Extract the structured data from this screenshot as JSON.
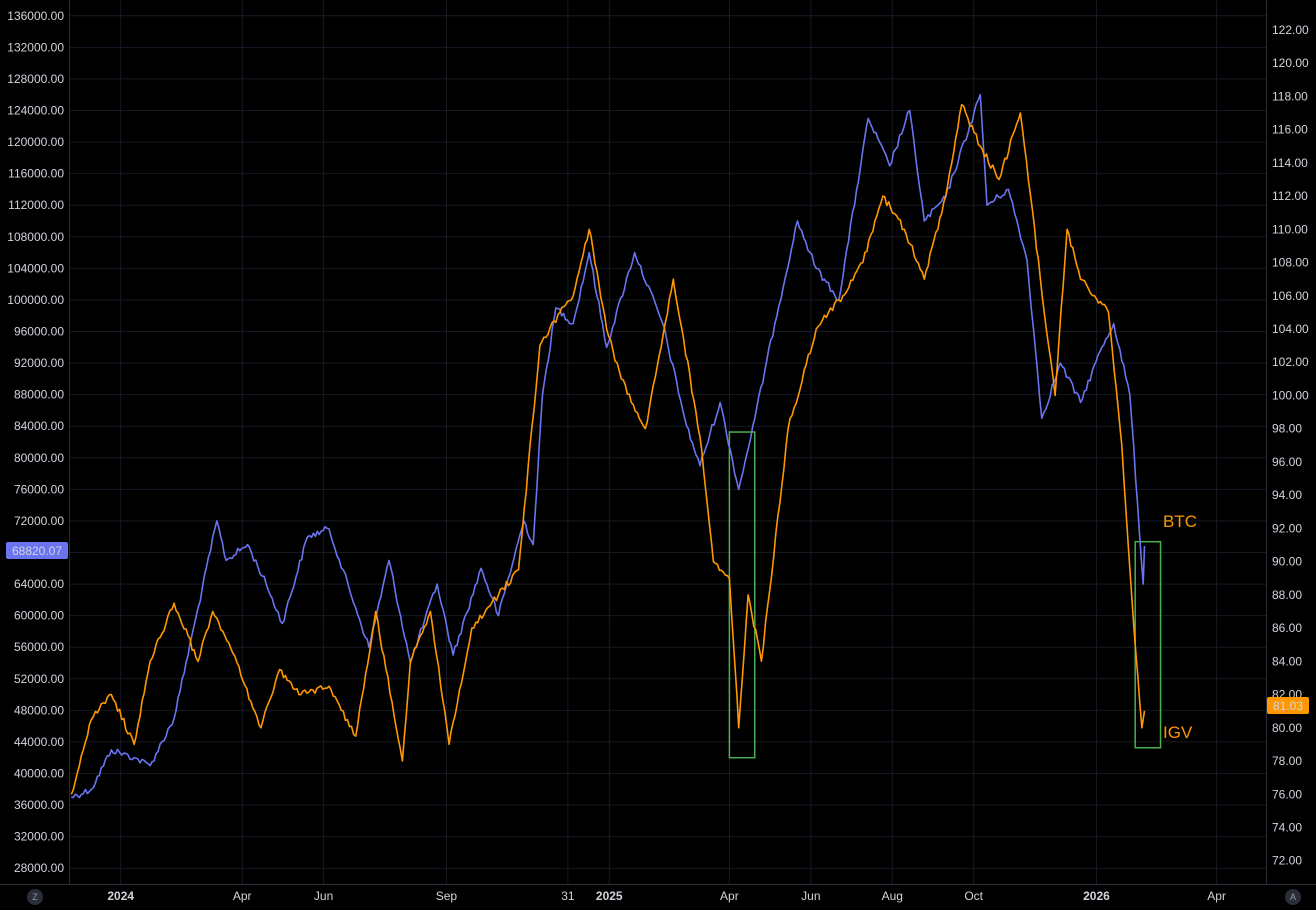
{
  "chart_data": {
    "type": "line",
    "title": "",
    "x_ticks": [
      "2024",
      "Apr",
      "Jun",
      "Sep",
      "31",
      "2025",
      "Apr",
      "Jun",
      "Aug",
      "Oct",
      "2026",
      "Apr"
    ],
    "x_ticks_bold": [
      "2024",
      "2025",
      "2026"
    ],
    "left_axis": {
      "ylim": [
        26000,
        138000
      ],
      "ticks": [
        "28000.00",
        "32000.00",
        "36000.00",
        "40000.00",
        "44000.00",
        "48000.00",
        "52000.00",
        "56000.00",
        "60000.00",
        "64000.00",
        "68000.00",
        "72000.00",
        "76000.00",
        "80000.00",
        "84000.00",
        "88000.00",
        "92000.00",
        "96000.00",
        "100000.00",
        "104000.00",
        "108000.00",
        "112000.00",
        "116000.00",
        "120000.00",
        "124000.00",
        "128000.00",
        "132000.00",
        "136000.00"
      ],
      "last_value_label": "68820.07"
    },
    "right_axis": {
      "ylim": [
        70.6,
        123.8
      ],
      "ticks": [
        "72.00",
        "74.00",
        "76.00",
        "78.00",
        "80.00",
        "82.00",
        "84.00",
        "86.00",
        "88.00",
        "90.00",
        "92.00",
        "94.00",
        "96.00",
        "98.00",
        "100.00",
        "102.00",
        "104.00",
        "106.00",
        "108.00",
        "110.00",
        "112.00",
        "114.00",
        "116.00",
        "118.00",
        "120.00",
        "122.00"
      ],
      "last_value_label": "81.03"
    },
    "series": [
      {
        "name": "BTC",
        "axis": "left",
        "color": "#6a74f0",
        "dates": [
          "2023-11-25",
          "2023-12-10",
          "2023-12-25",
          "2024-01-11",
          "2024-01-23",
          "2024-02-10",
          "2024-02-28",
          "2024-03-13",
          "2024-03-20",
          "2024-04-05",
          "2024-04-19",
          "2024-05-01",
          "2024-05-20",
          "2024-06-05",
          "2024-06-25",
          "2024-07-05",
          "2024-07-20",
          "2024-08-05",
          "2024-08-25",
          "2024-09-06",
          "2024-09-27",
          "2024-10-10",
          "2024-10-29",
          "2024-11-05",
          "2024-11-12",
          "2024-11-22",
          "2024-12-05",
          "2024-12-17",
          "2024-12-30",
          "2025-01-20",
          "2025-02-10",
          "2025-02-28",
          "2025-03-10",
          "2025-03-25",
          "2025-04-08",
          "2025-04-20",
          "2025-05-05",
          "2025-05-22",
          "2025-06-05",
          "2025-06-22",
          "2025-07-14",
          "2025-07-30",
          "2025-08-14",
          "2025-08-25",
          "2025-09-10",
          "2025-10-06",
          "2025-10-11",
          "2025-10-27",
          "2025-11-10",
          "2025-11-21",
          "2025-12-05",
          "2025-12-20",
          "2026-01-05",
          "2026-01-14",
          "2026-01-26",
          "2026-02-05",
          "2026-02-06"
        ],
        "values": [
          37000,
          38000,
          43000,
          42000,
          41000,
          47000,
          61000,
          72000,
          67000,
          69000,
          64000,
          59000,
          70000,
          71000,
          61000,
          56000,
          67000,
          54000,
          64000,
          55000,
          66000,
          60000,
          72000,
          69000,
          88000,
          99000,
          97000,
          106000,
          94000,
          106000,
          97000,
          84000,
          79000,
          87000,
          76000,
          85000,
          97000,
          110000,
          104000,
          100000,
          123000,
          117000,
          124000,
          110000,
          113000,
          126000,
          112000,
          114000,
          105000,
          85000,
          92000,
          87000,
          94000,
          97000,
          88000,
          64000,
          68820
        ]
      },
      {
        "name": "IGV",
        "axis": "right",
        "color": "#ff9800",
        "dates": [
          "2023-11-25",
          "2023-12-10",
          "2023-12-25",
          "2024-01-11",
          "2024-01-23",
          "2024-02-10",
          "2024-02-28",
          "2024-03-10",
          "2024-03-25",
          "2024-04-15",
          "2024-04-29",
          "2024-05-15",
          "2024-06-05",
          "2024-06-25",
          "2024-07-10",
          "2024-07-30",
          "2024-08-05",
          "2024-08-20",
          "2024-09-03",
          "2024-09-20",
          "2024-10-10",
          "2024-10-25",
          "2024-11-10",
          "2024-11-25",
          "2024-12-05",
          "2024-12-17",
          "2024-12-30",
          "2025-01-10",
          "2025-01-28",
          "2025-02-18",
          "2025-03-10",
          "2025-03-20",
          "2025-04-01",
          "2025-04-08",
          "2025-04-15",
          "2025-04-25",
          "2025-05-15",
          "2025-06-05",
          "2025-06-25",
          "2025-07-10",
          "2025-07-25",
          "2025-08-10",
          "2025-08-25",
          "2025-09-10",
          "2025-09-22",
          "2025-10-06",
          "2025-10-20",
          "2025-11-05",
          "2025-11-20",
          "2025-12-01",
          "2025-12-10",
          "2025-12-20",
          "2026-01-10",
          "2026-01-20",
          "2026-01-29",
          "2026-02-04",
          "2026-02-06"
        ],
        "values": [
          76.0,
          80.5,
          82.0,
          79.0,
          84.0,
          87.5,
          84.0,
          87.0,
          84.5,
          80.0,
          83.5,
          82.0,
          82.5,
          79.5,
          87.0,
          78.0,
          84.0,
          87.0,
          79.0,
          86.0,
          88.0,
          89.5,
          103.0,
          105.0,
          106.0,
          110.0,
          104.0,
          101.0,
          98.0,
          107.0,
          97.5,
          90.0,
          89.0,
          80.0,
          88.0,
          84.0,
          98.0,
          104.0,
          106.0,
          108.0,
          112.0,
          110.0,
          107.0,
          112.0,
          117.5,
          115.0,
          113.0,
          117.0,
          107.0,
          100.0,
          110.0,
          107.0,
          105.0,
          97.0,
          86.0,
          80.0,
          81.03
        ]
      }
    ],
    "annotations": [
      {
        "type": "label",
        "text": "BTC",
        "color": "#ff9800"
      },
      {
        "type": "label",
        "text": "IGV",
        "color": "#ff9800"
      }
    ],
    "highlight_boxes": [
      {
        "color": "#4caf50",
        "x_range": [
          "2025-04-01",
          "2025-04-20"
        ],
        "y_range_right": [
          78.2,
          97.8
        ]
      },
      {
        "color": "#4caf50",
        "x_range": [
          "2026-01-30",
          "2026-02-18"
        ],
        "y_range_right": [
          78.8,
          91.2
        ]
      }
    ],
    "grid": true
  },
  "corner": {
    "left_button": "Z",
    "right_button": "A"
  }
}
